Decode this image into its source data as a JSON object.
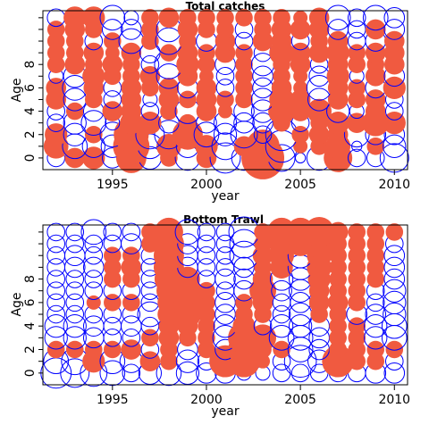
{
  "chart_data": [
    {
      "type": "bubble",
      "title": "Total catches",
      "xlabel": "year",
      "ylabel": "Age",
      "xlim": [
        1991.3,
        2010.7
      ],
      "ylim": [
        -1,
        12.6
      ],
      "x_ticks": [
        1995,
        2000,
        2005,
        2010
      ],
      "y_ticks": [
        0,
        2,
        4,
        6,
        8
      ],
      "grid": false,
      "legend": "none",
      "colors": {
        "positive": "#f05a40",
        "negative": "#0000ff"
      },
      "years": [
        1992,
        1993,
        1994,
        1995,
        1996,
        1997,
        1998,
        1999,
        2000,
        2001,
        2002,
        2003,
        2004,
        2005,
        2006,
        2007,
        2008,
        2009,
        2010
      ],
      "ages": [
        0,
        1,
        2,
        3,
        4,
        5,
        6,
        7,
        8,
        9,
        10,
        11,
        12
      ],
      "residuals": [
        [
          -0.3,
          0.4,
          0.5,
          -0.4,
          0.9,
          -0.5,
          0.3,
          -0.6,
          0.4,
          -0.9,
          -0.6,
          1.8,
          -0.7,
          -0.1,
          -0.6,
          0.8,
          -0.3,
          -0.3,
          -0.8
        ],
        [
          0.6,
          -0.6,
          -0.5,
          -0.5,
          1.3,
          -0.6,
          0.6,
          -0.5,
          0.5,
          -0.7,
          0.4,
          1.1,
          -1.0,
          0.2,
          0.3,
          0.6,
          -0.1,
          0.3,
          -0.5
        ],
        [
          0.5,
          -0.5,
          0.3,
          -0.6,
          1.2,
          -0.8,
          -0.8,
          0.9,
          -0.6,
          -0.5,
          -0.7,
          -0.3,
          -1.0,
          0.3,
          0.4,
          0.4,
          -0.6,
          -0.4,
          -0.4
        ],
        [
          -0.3,
          -0.5,
          -0.6,
          -0.2,
          0.5,
          0.5,
          -0.4,
          0.3,
          -0.4,
          -0.5,
          -0.4,
          -0.4,
          0.3,
          -0.3,
          0.3,
          0.5,
          0.4,
          0.7,
          0.5
        ],
        [
          -0.3,
          0.3,
          -0.4,
          0.4,
          0.4,
          -0.3,
          0.3,
          -0.6,
          0.4,
          0.2,
          -0.4,
          -0.5,
          0.7,
          0.4,
          0.6,
          -0.5,
          -0.2,
          0.4,
          -0.3
        ],
        [
          0.4,
          -0.5,
          0.3,
          -0.3,
          0.4,
          -0.2,
          0.4,
          0.3,
          0.4,
          0.3,
          0.3,
          -0.5,
          0.6,
          0.4,
          -0.5,
          0.4,
          0.3,
          0.4,
          -0.3
        ],
        [
          0.4,
          -0.6,
          0.4,
          -0.3,
          0.4,
          0.3,
          0.4,
          -0.4,
          0.4,
          -0.3,
          0.3,
          -0.4,
          0.4,
          0.2,
          -0.6,
          0.4,
          0.3,
          -0.4,
          0.5
        ],
        [
          -0.2,
          -0.5,
          0.5,
          0.3,
          0.3,
          0.4,
          -0.6,
          0.4,
          0.2,
          -0.3,
          0.3,
          -0.4,
          0.3,
          0.2,
          -0.4,
          0.5,
          -0.2,
          0.4,
          -0.4
        ],
        [
          0.3,
          0.4,
          0.3,
          0.4,
          0.3,
          -0.3,
          -0.8,
          0.5,
          0.3,
          -0.4,
          0.3,
          -0.5,
          0.3,
          0.4,
          -0.3,
          0.4,
          0.3,
          0.3,
          0.4
        ],
        [
          0.3,
          0.3,
          0.4,
          0.2,
          0.4,
          -0.4,
          0.3,
          0.4,
          0.3,
          0.4,
          0.3,
          -0.3,
          0.6,
          0.4,
          0.4,
          0.5,
          0.3,
          0.4,
          0.4
        ],
        [
          0.3,
          0.3,
          -0.3,
          0.3,
          -0.6,
          0.3,
          -0.7,
          0.3,
          -0.4,
          0.4,
          -0.3,
          0.4,
          0.4,
          -0.3,
          0.3,
          0.4,
          -0.3,
          -0.4,
          0.4
        ],
        [
          0.3,
          0.4,
          0.3,
          -0.4,
          -0.4,
          0.3,
          -0.6,
          0.4,
          0.3,
          0.3,
          -0.3,
          0.3,
          0.4,
          0.4,
          0.4,
          -0.4,
          -0.3,
          0.4,
          -0.4
        ],
        [
          -0.3,
          0.5,
          0.5,
          -0.6,
          -0.2,
          0.3,
          0.4,
          0.3,
          0.3,
          0.3,
          0.3,
          0.3,
          0.3,
          0.2,
          0.4,
          -0.6,
          -0.3,
          -0.6,
          -0.4
        ]
      ]
    },
    {
      "type": "bubble",
      "title": "Bottom Trawl",
      "xlabel": "year",
      "ylabel": "Age",
      "xlim": [
        1991.3,
        2010.7
      ],
      "ylim": [
        -1,
        12.6
      ],
      "x_ticks": [
        1995,
        2000,
        2005,
        2010
      ],
      "y_ticks": [
        0,
        2,
        4,
        6,
        8
      ],
      "grid": false,
      "legend": "none",
      "colors": {
        "positive": "#f05a40",
        "negative": "#0000ff"
      },
      "years": [
        1992,
        1993,
        1994,
        1995,
        1996,
        1997,
        1998,
        1999,
        2000,
        2001,
        2002,
        2003,
        2004,
        2005,
        2006,
        2007,
        2008,
        2009,
        2010
      ],
      "ages": [
        0,
        1,
        2,
        3,
        4,
        5,
        6,
        7,
        8,
        9,
        10,
        11,
        12
      ],
      "residuals": [
        [
          -0.9,
          -0.8,
          -0.7,
          -0.6,
          -0.3,
          -0.5,
          -0.6,
          -0.5,
          -0.4,
          -0.4,
          -0.2,
          -0.2,
          -0.3,
          -0.3,
          -0.3,
          -0.3,
          -0.3,
          -0.4,
          -0.4
        ],
        [
          -0.6,
          -0.7,
          0.5,
          -0.6,
          -0.5,
          0.4,
          0.3,
          -0.5,
          -0.3,
          1.0,
          1.0,
          0.2,
          -0.3,
          -1.0,
          -0.5,
          1.0,
          0.3,
          0.3,
          -0.3
        ],
        [
          0.3,
          0.3,
          0.3,
          0.3,
          0.4,
          -0.3,
          0.3,
          -0.4,
          0.3,
          -0.4,
          1.0,
          0.3,
          0.3,
          -0.6,
          -0.4,
          0.3,
          0.3,
          0.3,
          0.3
        ],
        [
          -0.5,
          -0.5,
          -0.4,
          -0.3,
          -0.3,
          0.3,
          0.4,
          0.3,
          0.3,
          -0.6,
          1.0,
          0.7,
          -0.6,
          -0.6,
          -0.4,
          0.3,
          0.3,
          -0.5,
          -0.6
        ],
        [
          -0.5,
          -0.5,
          -0.4,
          -0.3,
          -0.4,
          -0.3,
          0.4,
          0.4,
          0.3,
          -0.5,
          0.5,
          -0.3,
          -0.5,
          -0.5,
          -0.4,
          0.3,
          0.3,
          -0.5,
          -0.6
        ],
        [
          -0.3,
          -0.3,
          -0.3,
          -0.3,
          -0.3,
          -0.6,
          0.5,
          0.7,
          0.3,
          -0.4,
          0.3,
          0.3,
          -0.3,
          -0.5,
          0.3,
          0.3,
          -0.4,
          -0.4,
          -0.5
        ],
        [
          -0.3,
          -0.3,
          0.2,
          0.3,
          0.3,
          -0.3,
          0.5,
          0.8,
          0.3,
          -0.4,
          0.3,
          0.4,
          -0.3,
          -0.4,
          0.4,
          0.4,
          0.3,
          -0.3,
          -0.5
        ],
        [
          -0.3,
          -0.3,
          -0.3,
          -0.3,
          -0.3,
          -0.3,
          0.6,
          0.7,
          0.3,
          -0.3,
          -0.4,
          0.7,
          -0.4,
          -0.5,
          0.4,
          0.3,
          0.3,
          -0.3,
          -0.5
        ],
        [
          -0.3,
          -0.3,
          -0.3,
          0.3,
          0.3,
          -0.3,
          0.8,
          0.6,
          -0.3,
          -0.4,
          -0.4,
          0.4,
          -0.5,
          -0.5,
          0.5,
          0.3,
          0.3,
          0.3,
          -0.4
        ],
        [
          -0.3,
          -0.4,
          -0.4,
          0.3,
          0.4,
          -0.3,
          0.9,
          -0.4,
          -0.3,
          -0.3,
          -0.4,
          0.3,
          0.5,
          -0.6,
          0.6,
          0.3,
          0.3,
          0.3,
          -0.4
        ],
        [
          -0.3,
          -0.4,
          -0.3,
          0.3,
          0.3,
          -0.3,
          0.9,
          -0.4,
          -0.3,
          -0.3,
          -0.8,
          0.4,
          0.6,
          -0.6,
          0.6,
          0.3,
          0.3,
          0.3,
          -0.4
        ],
        [
          -0.3,
          -0.3,
          -0.3,
          -0.3,
          -0.4,
          0.3,
          0.9,
          -0.4,
          -0.3,
          -0.3,
          -0.8,
          0.3,
          0.6,
          0.6,
          0.8,
          0.3,
          0.3,
          0.3,
          -0.3
        ],
        [
          -0.3,
          -0.3,
          -0.6,
          -0.3,
          -0.3,
          0.3,
          0.8,
          -0.6,
          -0.3,
          -0.3,
          -0.9,
          0.3,
          0.8,
          0.8,
          0.9,
          0.4,
          0.3,
          0.3,
          0.3
        ]
      ]
    }
  ]
}
